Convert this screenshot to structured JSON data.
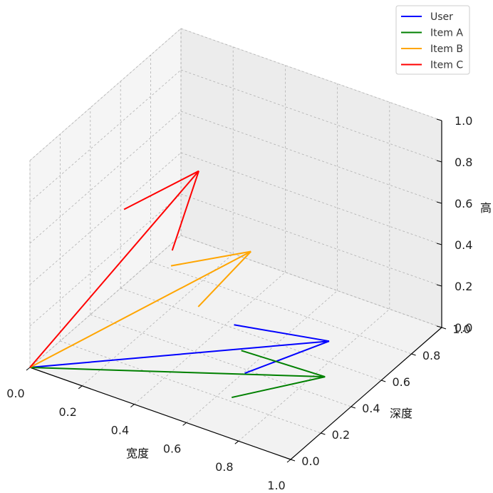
{
  "chart_data": {
    "type": "line",
    "projection": "3d",
    "chart_kind": "3d-quiver",
    "title": "",
    "xlabel": "宽度",
    "ylabel": "深度",
    "zlabel": "高",
    "xlim": [
      0,
      1
    ],
    "ylim": [
      0,
      1
    ],
    "zlim": [
      0,
      1
    ],
    "xticks": [
      "0.0",
      "0.2",
      "0.4",
      "0.6",
      "0.8",
      "1.0"
    ],
    "yticks": [
      "0.0",
      "0.2",
      "0.4",
      "0.6",
      "0.8",
      "1.0"
    ],
    "zticks": [
      "0.0",
      "0.2",
      "0.4",
      "0.6",
      "0.8",
      "1.0"
    ],
    "grid": true,
    "legend_position": "top-right",
    "origin": [
      0,
      0,
      0
    ],
    "series": [
      {
        "name": "User",
        "color": "#0000ff",
        "vector": [
          0.8,
          0.6,
          0.1
        ]
      },
      {
        "name": "Item A",
        "color": "#008000",
        "vector": [
          0.9,
          0.4,
          0.1
        ]
      },
      {
        "name": "Item B",
        "color": "#ffa500",
        "vector": [
          0.5,
          0.6,
          0.4
        ]
      },
      {
        "name": "Item C",
        "color": "#ff0000",
        "vector": [
          0.3,
          0.6,
          0.7
        ]
      }
    ]
  }
}
